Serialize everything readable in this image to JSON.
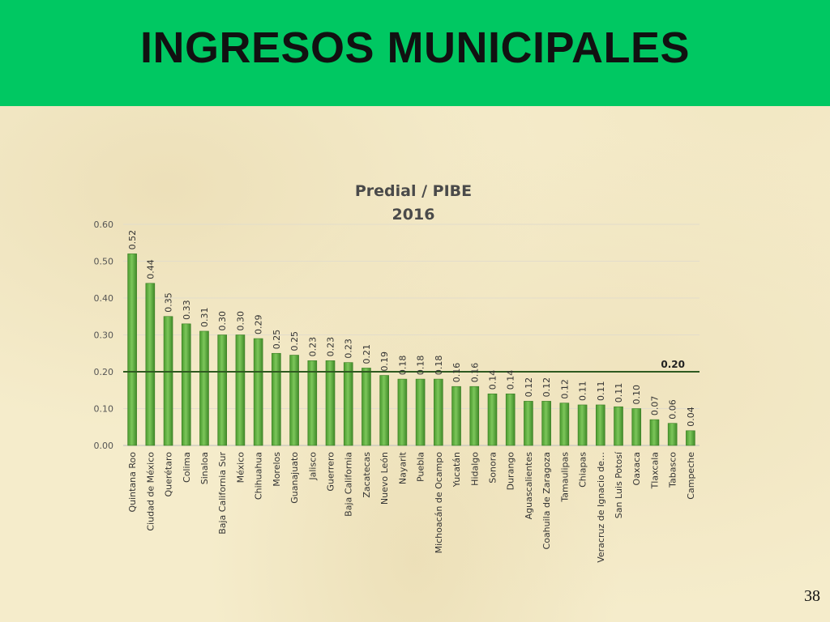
{
  "slide": {
    "title": "INGRESOS MUNICIPALES",
    "page_number": "38",
    "header_color": "#00c862"
  },
  "chart_data": {
    "type": "bar",
    "title": "Predial / PIBE",
    "subtitle": "2016",
    "xlabel": "",
    "ylabel": "",
    "ylim": [
      0,
      0.6
    ],
    "yticks": [
      "0.00",
      "0.10",
      "0.20",
      "0.30",
      "0.40",
      "0.50",
      "0.60"
    ],
    "grid": true,
    "legend": "none",
    "bar_color": "#5fae3e",
    "categories": [
      "Quintana Roo",
      "Ciudad de México",
      "Querétaro",
      "Colima",
      "Sinaloa",
      "Baja California Sur",
      "México",
      "Chihuahua",
      "Morelos",
      "Guanajuato",
      "Jalisco",
      "Guerrero",
      "Baja California",
      "Zacatecas",
      "Nuevo León",
      "Nayarit",
      "Puebla",
      "Michoacán de Ocampo",
      "Yucatán",
      "Hidalgo",
      "Sonora",
      "Durango",
      "Aguascalientes",
      "Coahuila de Zaragoza",
      "Tamaulipas",
      "Chiapas",
      "Veracruz de Ignacio de…",
      "San Luis Potosí",
      "Oaxaca",
      "Tlaxcala",
      "Tabasco",
      "Campeche"
    ],
    "values": [
      0.52,
      0.44,
      0.35,
      0.33,
      0.31,
      0.3,
      0.3,
      0.29,
      0.25,
      0.245,
      0.23,
      0.23,
      0.225,
      0.21,
      0.19,
      0.18,
      0.18,
      0.18,
      0.16,
      0.16,
      0.14,
      0.14,
      0.12,
      0.12,
      0.115,
      0.11,
      0.11,
      0.105,
      0.1,
      0.07,
      0.06,
      0.04
    ],
    "data_labels": [
      "0.52",
      "0.44",
      "0.35",
      "0.33",
      "0.31",
      "0.30",
      "0.30",
      "0.29",
      "0.25",
      "0.25",
      "0.23",
      "0.23",
      "0.23",
      "0.21",
      "0.19",
      "0.18",
      "0.18",
      "0.18",
      "0.16",
      "0.16",
      "0.14",
      "0.14",
      "0.12",
      "0.12",
      "0.12",
      "0.11",
      "0.11",
      "0.11",
      "0.10",
      "0.07",
      "0.06",
      "0.04"
    ],
    "reference_line": {
      "value": 0.2,
      "label": "0.20",
      "color": "#2e5a20"
    }
  }
}
